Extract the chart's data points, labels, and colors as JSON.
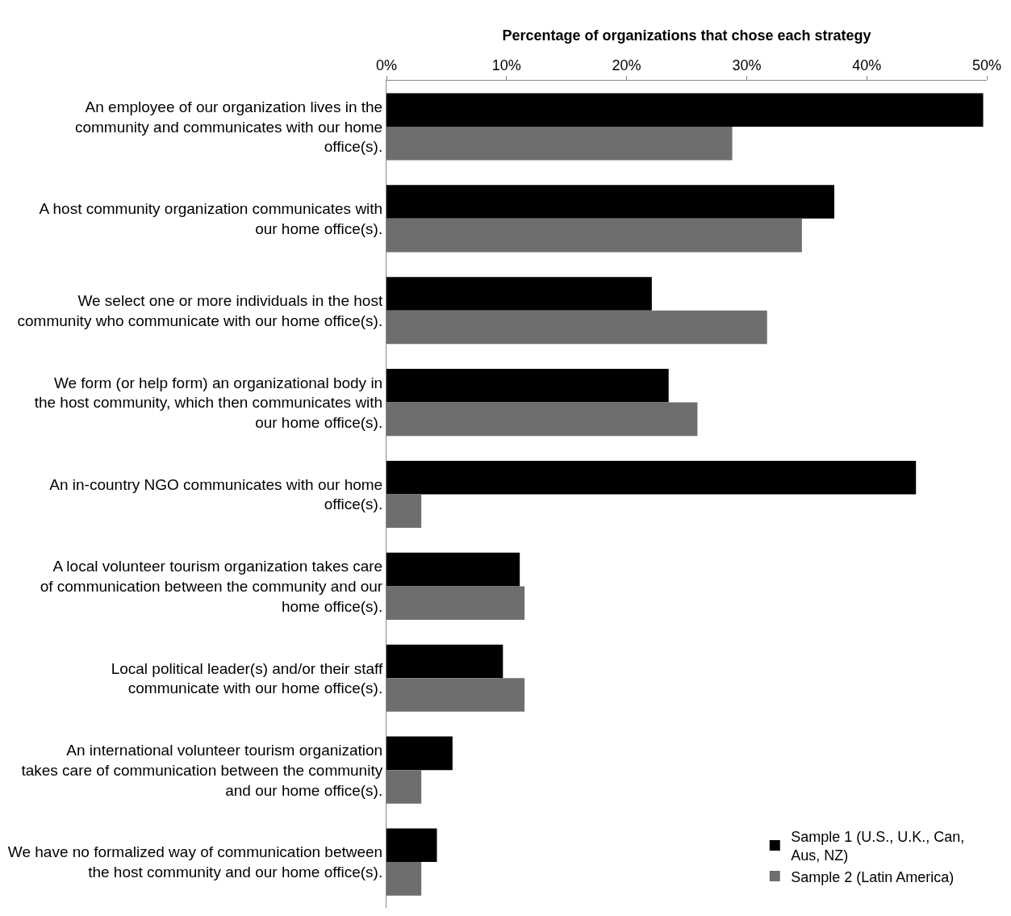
{
  "chart_data": {
    "type": "bar",
    "orientation": "horizontal",
    "xlabel": "Percentage of organizations that chose each strategy",
    "categories": [
      "An employee of our organization lives in the community and communicates with our home office(s).",
      "A host community organization communicates with our home office(s).",
      "We select one or more individuals in the host community who communicate with our home office(s).",
      "We form (or help form) an organizational body in the host community, which then communicates with our home office(s).",
      "An in-country NGO communicates with our home office(s).",
      "A local volunteer tourism organization takes care of communication between the community and our home office(s).",
      "Local political leader(s) and/or their staff communicate with our home office(s).",
      "An international volunteer tourism organization takes care of communication between the community and our home office(s).",
      "We have no formalized way of communication between the host community and our home office(s)."
    ],
    "series": [
      {
        "name": "Sample 1 (U.S., U.K., Can, Aus, NZ)",
        "color": "#000000",
        "values": [
          49.7,
          37.3,
          22.1,
          23.5,
          44.1,
          11.1,
          9.7,
          5.5,
          4.2
        ]
      },
      {
        "name": "Sample 2 (Latin America)",
        "color": "#6e6e6e",
        "values": [
          28.8,
          34.6,
          31.7,
          25.9,
          2.9,
          11.5,
          11.5,
          2.9,
          2.9
        ]
      }
    ],
    "xlim": [
      0,
      50
    ],
    "xticks": [
      {
        "value": 0,
        "label": "0%"
      },
      {
        "value": 10,
        "label": "10%"
      },
      {
        "value": 20,
        "label": "20%"
      },
      {
        "value": 30,
        "label": "30%"
      },
      {
        "value": 40,
        "label": "40%"
      },
      {
        "value": 50,
        "label": "50%"
      }
    ],
    "legend": "bottom right"
  }
}
